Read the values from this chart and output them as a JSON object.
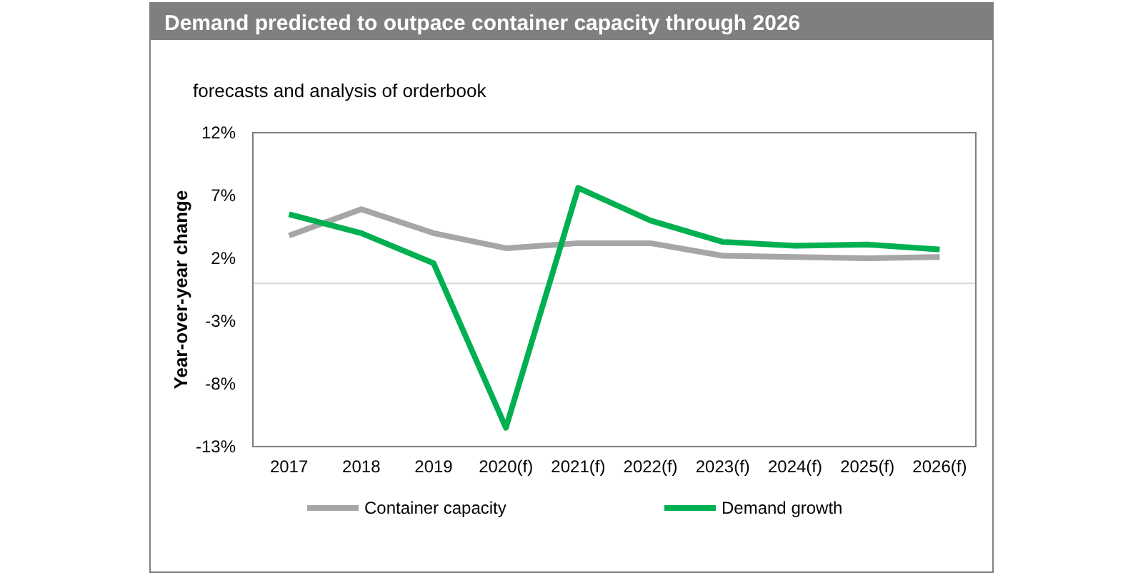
{
  "chart_data": {
    "type": "line",
    "title": "Demand predicted to outpace container capacity through 2026",
    "subtitle": "forecasts and analysis of orderbook",
    "ylabel": "Year-over-year change",
    "categories": [
      "2017",
      "2018",
      "2019",
      "2020(f)",
      "2021(f)",
      "2022(f)",
      "2023(f)",
      "2024(f)",
      "2025(f)",
      "2026(f)"
    ],
    "series": [
      {
        "name": "Container capacity",
        "color": "#a6a6a6",
        "values": [
          3.8,
          5.9,
          4.0,
          2.8,
          3.2,
          3.2,
          2.2,
          2.1,
          2.0,
          2.1
        ]
      },
      {
        "name": "Demand growth",
        "color": "#00b050",
        "values": [
          5.5,
          4.0,
          1.6,
          -11.5,
          7.6,
          5.0,
          3.3,
          3.0,
          3.1,
          2.7
        ]
      }
    ],
    "ylim": [
      -13,
      12
    ],
    "yticks": [
      {
        "value": -13,
        "label": "-13%"
      },
      {
        "value": -8,
        "label": "-8%"
      },
      {
        "value": -3,
        "label": "-3%"
      },
      {
        "value": 2,
        "label": "2%"
      },
      {
        "value": 7,
        "label": "7%"
      },
      {
        "value": 12,
        "label": "12%"
      }
    ],
    "ref_lines": [
      {
        "axis": "y",
        "value": 0,
        "color": "#d9d9d9"
      }
    ],
    "legend": "bottom",
    "grid": false,
    "marker": "none",
    "line_style": "solid"
  }
}
